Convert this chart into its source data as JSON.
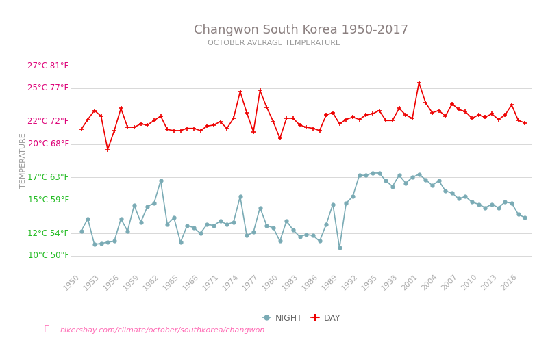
{
  "title": "Changwon South Korea 1950-2017",
  "subtitle": "OCTOBER AVERAGE TEMPERATURE",
  "ylabel": "TEMPERATURE",
  "title_color": "#8a7f7f",
  "subtitle_color": "#999999",
  "ylabel_color": "#999999",
  "background_color": "#ffffff",
  "grid_color": "#d8d8d8",
  "day_color": "#ee0000",
  "night_color": "#7aabb5",
  "years": [
    1950,
    1951,
    1952,
    1953,
    1954,
    1955,
    1956,
    1957,
    1958,
    1959,
    1960,
    1961,
    1962,
    1963,
    1964,
    1965,
    1966,
    1967,
    1968,
    1969,
    1970,
    1971,
    1972,
    1973,
    1974,
    1975,
    1976,
    1977,
    1978,
    1979,
    1980,
    1981,
    1982,
    1983,
    1984,
    1985,
    1986,
    1987,
    1988,
    1989,
    1990,
    1991,
    1992,
    1993,
    1994,
    1995,
    1996,
    1997,
    1998,
    1999,
    2000,
    2001,
    2002,
    2003,
    2004,
    2005,
    2006,
    2007,
    2008,
    2009,
    2010,
    2011,
    2012,
    2013,
    2014,
    2015,
    2016,
    2017
  ],
  "day_temps": [
    21.3,
    22.2,
    23.0,
    22.5,
    19.5,
    21.2,
    23.2,
    21.5,
    21.5,
    21.8,
    21.7,
    22.1,
    22.5,
    21.3,
    21.2,
    21.2,
    21.4,
    21.4,
    21.2,
    21.6,
    21.7,
    22.0,
    21.4,
    22.3,
    24.7,
    22.8,
    21.1,
    24.8,
    23.3,
    22.0,
    20.5,
    22.3,
    22.3,
    21.7,
    21.5,
    21.4,
    21.2,
    22.6,
    22.8,
    21.8,
    22.2,
    22.4,
    22.2,
    22.6,
    22.7,
    23.0,
    22.1,
    22.1,
    23.2,
    22.6,
    22.3,
    25.5,
    23.7,
    22.8,
    23.0,
    22.5,
    23.6,
    23.1,
    22.9,
    22.3,
    22.6,
    22.4,
    22.7,
    22.2,
    22.6,
    23.5,
    22.1,
    21.9
  ],
  "night_temps": [
    12.2,
    13.3,
    11.0,
    11.1,
    11.2,
    11.3,
    13.3,
    12.2,
    14.5,
    13.0,
    14.4,
    14.7,
    16.7,
    12.8,
    13.4,
    11.2,
    12.7,
    12.5,
    12.0,
    12.8,
    12.7,
    13.1,
    12.8,
    13.0,
    15.3,
    11.8,
    12.1,
    14.3,
    12.7,
    12.5,
    11.3,
    13.1,
    12.3,
    11.7,
    11.9,
    11.8,
    11.3,
    12.8,
    14.6,
    10.7,
    14.7,
    15.3,
    17.2,
    17.2,
    17.4,
    17.4,
    16.7,
    16.2,
    17.2,
    16.5,
    17.0,
    17.3,
    16.8,
    16.3,
    16.7,
    15.8,
    15.6,
    15.1,
    15.3,
    14.8,
    14.6,
    14.3,
    14.6,
    14.3,
    14.8,
    14.7,
    13.7,
    13.4
  ],
  "yticks_celsius": [
    10,
    12,
    15,
    17,
    20,
    22,
    25,
    27
  ],
  "yticks_fahrenheit": [
    50,
    54,
    59,
    63,
    68,
    72,
    77,
    81
  ],
  "yticks_colors": [
    "#22bb22",
    "#22bb22",
    "#22bb22",
    "#22bb22",
    "#dd0077",
    "#dd0077",
    "#dd0077",
    "#dd0077"
  ],
  "ymin": 9.0,
  "ymax": 28.0,
  "xtick_years": [
    1950,
    1953,
    1956,
    1959,
    1962,
    1965,
    1968,
    1971,
    1974,
    1977,
    1980,
    1983,
    1986,
    1989,
    1992,
    1995,
    1998,
    2001,
    2004,
    2007,
    2010,
    2013,
    2016
  ],
  "legend_night_label": "NIGHT",
  "legend_day_label": "DAY",
  "footer_text": "hikersbay.com/climate/october/southkorea/changwon",
  "footer_color": "#ff69b4",
  "figsize": [
    8.0,
    5.0
  ],
  "dpi": 100
}
